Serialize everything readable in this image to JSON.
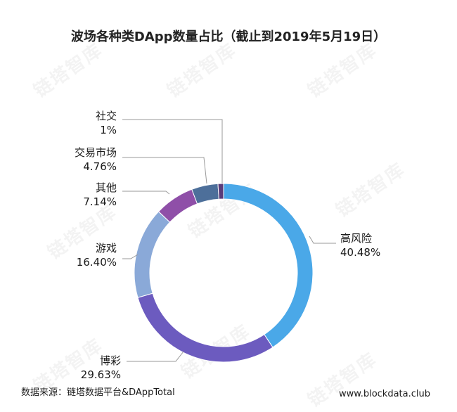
{
  "chart_data": {
    "type": "pie",
    "style": "donut",
    "title": "波场各种类DApp数量占比（截止到2019年5月19日）",
    "slices": [
      {
        "name": "高风险",
        "value": 40.48,
        "label": "40.48%",
        "color": "#4aa8e8"
      },
      {
        "name": "博彩",
        "value": 29.63,
        "label": "29.63%",
        "color": "#6c5bbf"
      },
      {
        "name": "游戏",
        "value": 16.4,
        "label": "16.40%",
        "color": "#8aa9d8"
      },
      {
        "name": "其他",
        "value": 7.14,
        "label": "7.14%",
        "color": "#8f4fa8"
      },
      {
        "name": "交易市场",
        "value": 4.76,
        "label": "4.76%",
        "color": "#4d6f9a"
      },
      {
        "name": "社交",
        "value": 1,
        "label": "1%",
        "color": "#5a3c7a"
      }
    ]
  },
  "footer": {
    "source": "数据来源：链塔数据平台&DAppTotal",
    "website": "www.blockdata.club"
  },
  "watermark": {
    "text": "链塔智库"
  }
}
